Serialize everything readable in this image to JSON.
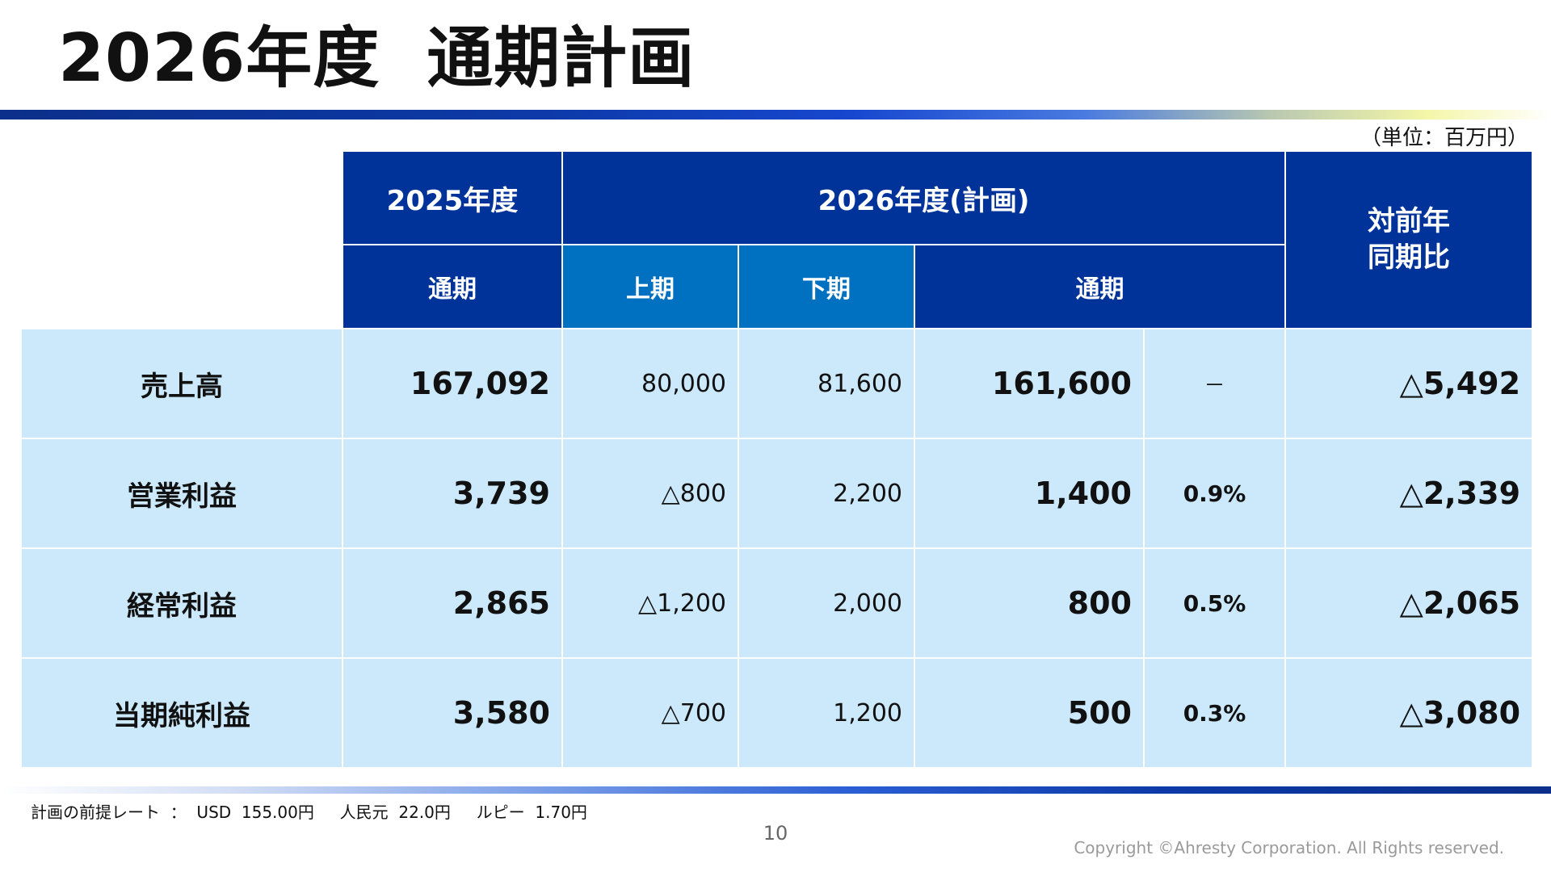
{
  "slide": {
    "title_year": "2026年度",
    "title_main": "通期計画",
    "unit": "（単位：百万円）"
  },
  "table": {
    "headers": {
      "fy2025": "2025年度",
      "fy2026": "2026年度(計画)",
      "yoy": "対前年\n同期比",
      "full_year_2025": "通期",
      "first_half": "上期",
      "second_half": "下期",
      "full_year_2026": "通期"
    },
    "rows": [
      {
        "label": "売上高",
        "fy2025": "167,092",
        "h1": "80,000",
        "h2": "81,600",
        "fy2026": "161,600",
        "margin": "－",
        "yoy": "△5,492"
      },
      {
        "label": "営業利益",
        "fy2025": "3,739",
        "h1": "△800",
        "h2": "2,200",
        "fy2026": "1,400",
        "margin": "0.9%",
        "yoy": "△2,339"
      },
      {
        "label": "経常利益",
        "fy2025": "2,865",
        "h1": "△1,200",
        "h2": "2,000",
        "fy2026": "800",
        "margin": "0.5%",
        "yoy": "△2,065"
      },
      {
        "label": "当期純利益",
        "fy2025": "3,580",
        "h1": "△700",
        "h2": "1,200",
        "fy2026": "500",
        "margin": "0.3%",
        "yoy": "△3,080"
      }
    ]
  },
  "footer": {
    "note": "計画の前提レート  ：  USD  155.00円     人民元  22.0円     ルピー  1.70円",
    "page_number": "10",
    "copyright": "Copyright ©Ahresty Corporation. All Rights reserved."
  },
  "colors": {
    "header_dark": "#003399",
    "header_mid": "#0070c0",
    "body_fill": "#cce9fb"
  }
}
